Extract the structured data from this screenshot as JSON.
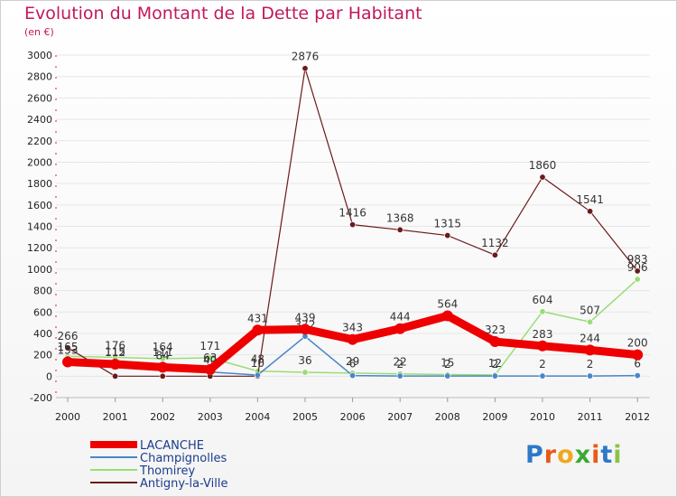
{
  "title": "Evolution du Montant de la Dette par Habitant",
  "subtitle": "(en €)",
  "logo": {
    "text": "Proxiti"
  },
  "chart_data": {
    "type": "line",
    "categories": [
      "2000",
      "2001",
      "2002",
      "2003",
      "2004",
      "2005",
      "2006",
      "2007",
      "2008",
      "2009",
      "2010",
      "2011",
      "2012"
    ],
    "ylim": [
      -200,
      3000
    ],
    "yticks": [
      -200,
      0,
      200,
      400,
      600,
      800,
      1000,
      1200,
      1400,
      1600,
      1800,
      2000,
      2200,
      2400,
      2600,
      2800,
      3000
    ],
    "series": [
      {
        "name": "Thomirey",
        "color": "#99dd77",
        "width": 1.5,
        "values": [
          186,
          176,
          164,
          171,
          48,
          36,
          29,
          22,
          15,
          12,
          604,
          507,
          906
        ],
        "labels": [
          "",
          "176",
          "164",
          "171",
          "48",
          "36",
          "29",
          "22",
          "15",
          "12",
          "604",
          "507",
          "906"
        ]
      },
      {
        "name": "Antigny-la-Ville",
        "color": "#6b1a1a",
        "width": 1.2,
        "values": [
          266,
          0,
          0,
          0,
          0,
          2876,
          1416,
          1368,
          1315,
          1132,
          1860,
          1541,
          983
        ],
        "labels": [
          "266",
          "",
          "",
          "",
          "",
          "2876",
          "1416",
          "1368",
          "1315",
          "1132",
          "1860",
          "1541",
          "983"
        ]
      },
      {
        "name": "Champignolles",
        "color": "#4a86c8",
        "width": 1.5,
        "values": [
          165,
          115,
          111,
          40,
          10,
          372,
          6,
          2,
          2,
          2,
          2,
          2,
          6
        ],
        "labels": [
          "165",
          "115",
          "111",
          "40",
          "10",
          "372",
          "6",
          "2",
          "2",
          "2",
          "2",
          "2",
          "6"
        ]
      },
      {
        "name": "LACANCHE",
        "color": "#ee0000",
        "width": 9,
        "values": [
          133,
          112,
          84,
          63,
          431,
          439,
          343,
          444,
          564,
          323,
          283,
          244,
          200
        ],
        "labels": [
          "133",
          "112",
          "84",
          "63",
          "431",
          "439",
          "343",
          "444",
          "564",
          "323",
          "283",
          "244",
          "200"
        ]
      }
    ],
    "legend": [
      {
        "name": "LACANCHE",
        "color": "#ee0000"
      },
      {
        "name": "Champignolles",
        "color": "#4a86c8"
      },
      {
        "name": "Thomirey",
        "color": "#99dd77"
      },
      {
        "name": "Antigny-la-Ville",
        "color": "#6b1a1a"
      }
    ]
  }
}
